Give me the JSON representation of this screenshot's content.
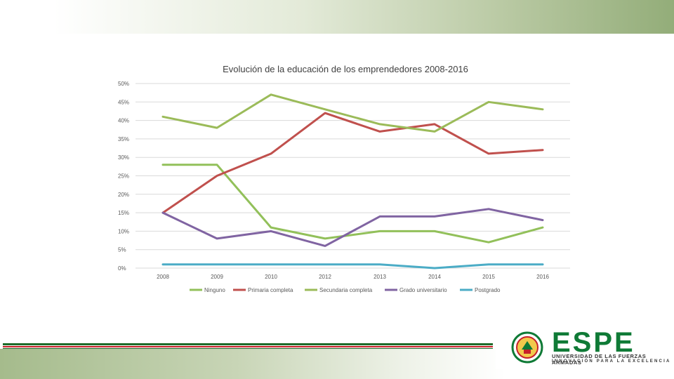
{
  "chart_data": {
    "type": "line",
    "title": "Evolución de la educación de los emprendedores 2008-2016",
    "xlabel": "",
    "ylabel": "",
    "categories": [
      "2008",
      "2009",
      "2010",
      "2012",
      "2013",
      "2014",
      "2015",
      "2016"
    ],
    "ylim": [
      0,
      50
    ],
    "yticks": [
      "0%",
      "5%",
      "10%",
      "15%",
      "20%",
      "25%",
      "30%",
      "35%",
      "40%",
      "45%",
      "50%"
    ],
    "grid": true,
    "legend_position": "bottom",
    "series": [
      {
        "name": "Ninguno",
        "color": "#92c05a",
        "values": [
          28,
          28,
          11,
          8,
          10,
          10,
          7,
          11
        ]
      },
      {
        "name": "Primaria completa",
        "color": "#c0504d",
        "values": [
          15,
          25,
          31,
          42,
          37,
          39,
          31,
          32
        ]
      },
      {
        "name": "Secundaria completa",
        "color": "#9bbb59",
        "values": [
          41,
          38,
          47,
          43,
          39,
          37,
          45,
          43
        ]
      },
      {
        "name": "Grado universitario",
        "color": "#8064a2",
        "values": [
          15,
          8,
          10,
          6,
          14,
          14,
          16,
          13
        ]
      },
      {
        "name": "Postgrado",
        "color": "#4bacc6",
        "values": [
          1,
          1,
          1,
          1,
          1,
          0,
          1,
          1
        ]
      }
    ]
  },
  "branding": {
    "logo_text": "ESPE",
    "logo_line1": "UNIVERSIDAD DE LAS FUERZAS ARMADAS",
    "logo_line2": "INNOVACIÓN PARA LA EXCELENCIA",
    "primary_color": "#0f7a36",
    "accent_color": "#c7202a"
  }
}
